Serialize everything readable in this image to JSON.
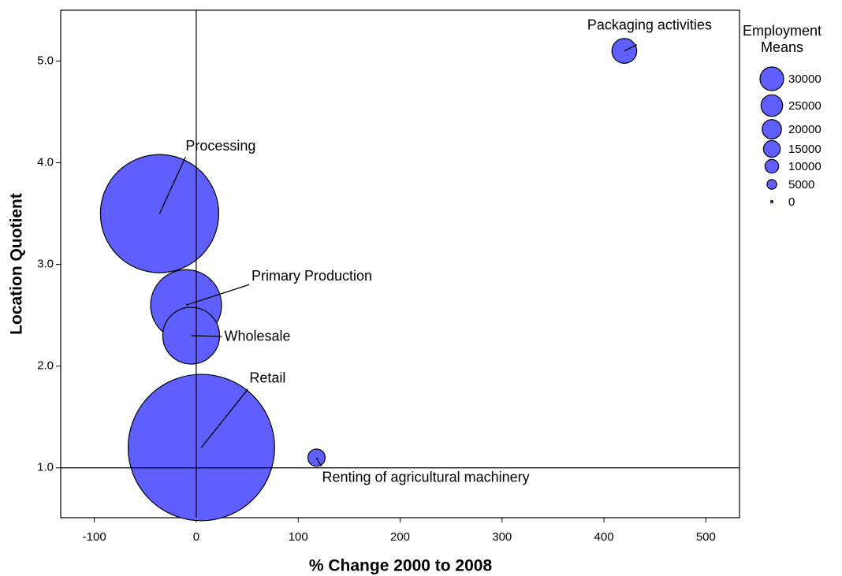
{
  "chart_data": {
    "type": "bubble",
    "x_label": "% Change 2000 to 2008",
    "y_label": "Location Quotient",
    "xlim": [
      -133,
      533
    ],
    "ylim": [
      0.51,
      5.5
    ],
    "xticks": [
      -100,
      0,
      100,
      200,
      300,
      400,
      500
    ],
    "yticks": [
      {
        "value": 1,
        "label": "1.0"
      },
      {
        "value": 2,
        "label": "2.0"
      },
      {
        "value": 3,
        "label": "3.0"
      },
      {
        "value": 4,
        "label": "4.0"
      },
      {
        "value": 5,
        "label": "5.0"
      }
    ],
    "reference_x": 0,
    "reference_y": 1,
    "color": "#5f5fff",
    "points": {
      "labels": [
        "Packaging activities",
        "Processing",
        "Primary Production",
        "Wholesale",
        "Retail",
        "Renting of agricultural machinery"
      ],
      "x": [
        420,
        -36,
        -10,
        -5,
        5,
        118
      ],
      "y": [
        5.1,
        3.5,
        2.6,
        2.3,
        1.2,
        1.1
      ],
      "size": [
        33000,
        750000,
        270000,
        173000,
        1150000,
        16000
      ]
    },
    "legend": {
      "title": [
        "Employment",
        "Means"
      ],
      "sizes": [
        30000,
        25000,
        20000,
        15000,
        10000,
        5000,
        0
      ]
    }
  }
}
